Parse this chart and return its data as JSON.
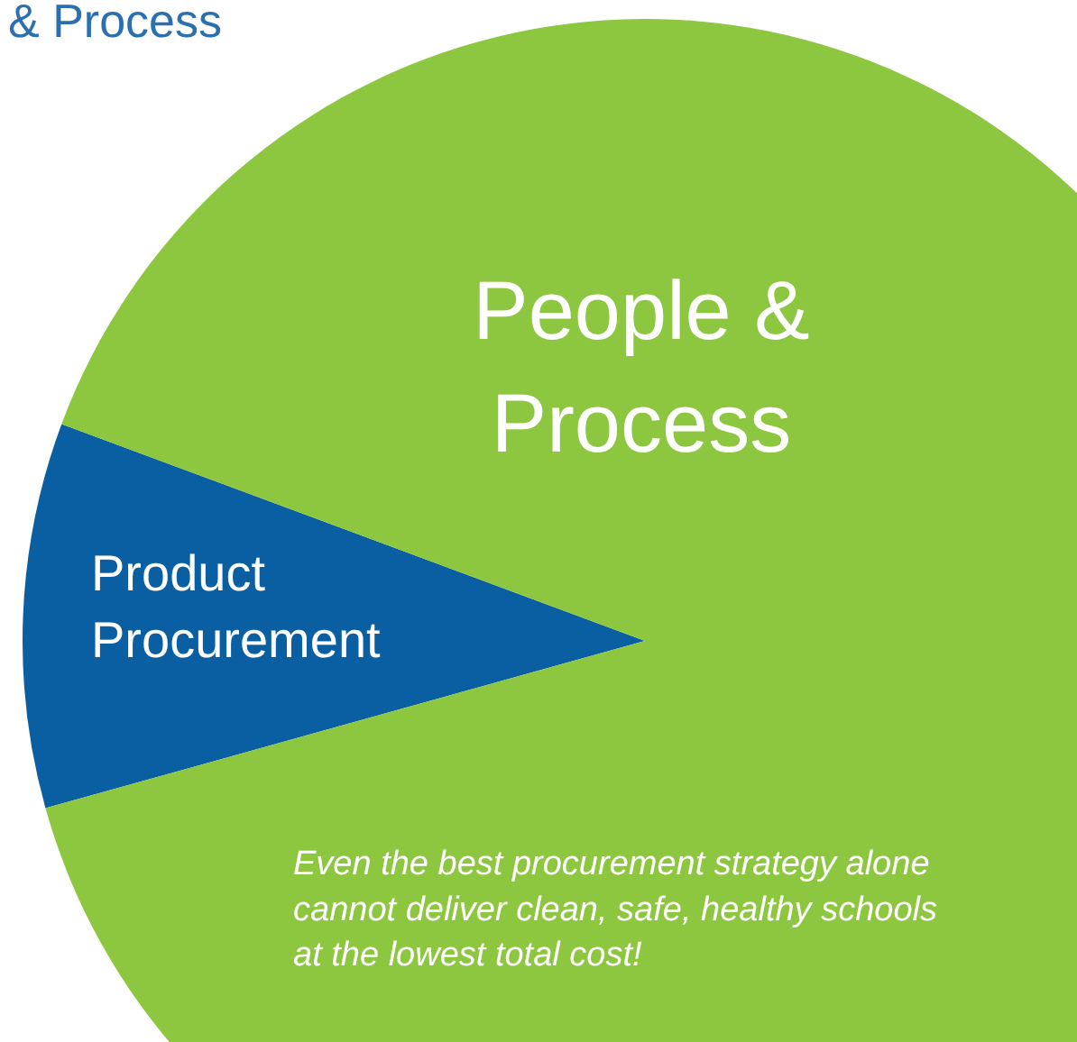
{
  "chart_data": {
    "type": "pie",
    "title": "& Process",
    "categories": [
      "Product Procurement",
      "People & Process"
    ],
    "values": [
      10,
      90
    ],
    "colors": [
      "#0a5fa3",
      "#8dc63f"
    ],
    "annotations": [
      "Even the best procurement strategy alone cannot deliver clean, safe, healthy schools at the lowest total cost!"
    ]
  }
}
